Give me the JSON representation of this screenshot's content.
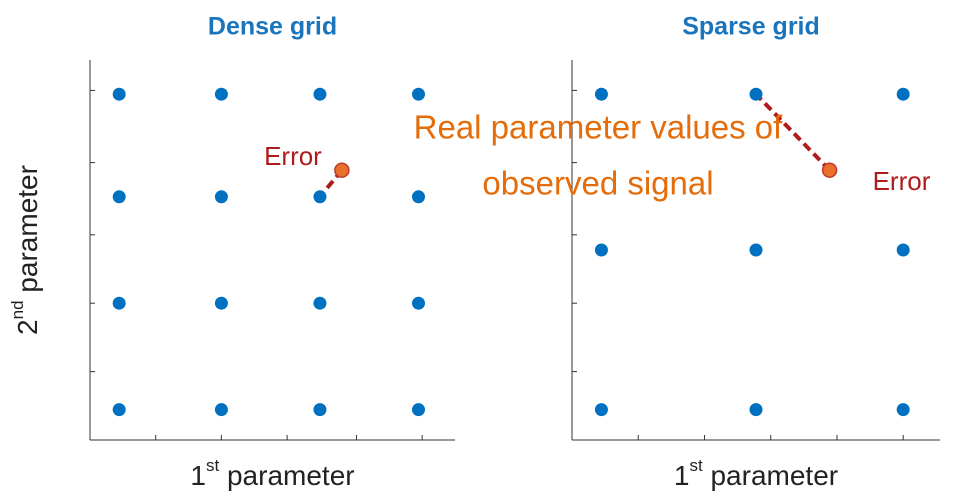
{
  "chart_data": [
    {
      "type": "scatter",
      "title": "Dense grid",
      "xlabel": [
        "1",
        "st",
        " parameter"
      ],
      "ylabel": [
        "2",
        "nd",
        " parameter"
      ],
      "xlim": [
        0,
        1
      ],
      "ylim": [
        0,
        1
      ],
      "xticks": [
        0.18,
        0.36,
        0.54,
        0.73,
        0.91
      ],
      "yticks": [
        0.18,
        0.36,
        0.54,
        0.73,
        0.92
      ],
      "points": {
        "color": "#0070c0",
        "x": [
          0.08,
          0.36,
          0.63,
          0.9,
          0.08,
          0.36,
          0.63,
          0.9,
          0.08,
          0.36,
          0.63,
          0.9,
          0.08,
          0.36,
          0.63,
          0.9
        ],
        "y": [
          0.91,
          0.91,
          0.91,
          0.91,
          0.64,
          0.64,
          0.64,
          0.64,
          0.36,
          0.36,
          0.36,
          0.36,
          0.08,
          0.08,
          0.08,
          0.08
        ]
      },
      "signal": {
        "color": "#e8702a",
        "x": [
          0.69
        ],
        "y": [
          0.71
        ]
      },
      "error_label": "Error",
      "error_color": "#b01c1c"
    },
    {
      "type": "scatter",
      "title": "Sparse grid",
      "xlabel": [
        "1",
        "st",
        " parameter"
      ],
      "xlim": [
        0,
        1
      ],
      "ylim": [
        0,
        1
      ],
      "xticks": [
        0.18,
        0.36,
        0.54,
        0.72,
        0.9
      ],
      "yticks": [
        0.18,
        0.36,
        0.54,
        0.73,
        0.92
      ],
      "points": {
        "color": "#0070c0",
        "x": [
          0.08,
          0.5,
          0.9,
          0.08,
          0.5,
          0.9,
          0.08,
          0.5,
          0.9
        ],
        "y": [
          0.91,
          0.91,
          0.91,
          0.5,
          0.5,
          0.5,
          0.08,
          0.08,
          0.08
        ]
      },
      "signal": {
        "color": "#e8702a",
        "x": [
          0.7
        ],
        "y": [
          0.71
        ]
      },
      "error_label": "Error",
      "error_color": "#b01c1c"
    }
  ],
  "annotation": {
    "lines": [
      "Real parameter values of",
      "observed signal"
    ],
    "color": "#e46c0a"
  }
}
